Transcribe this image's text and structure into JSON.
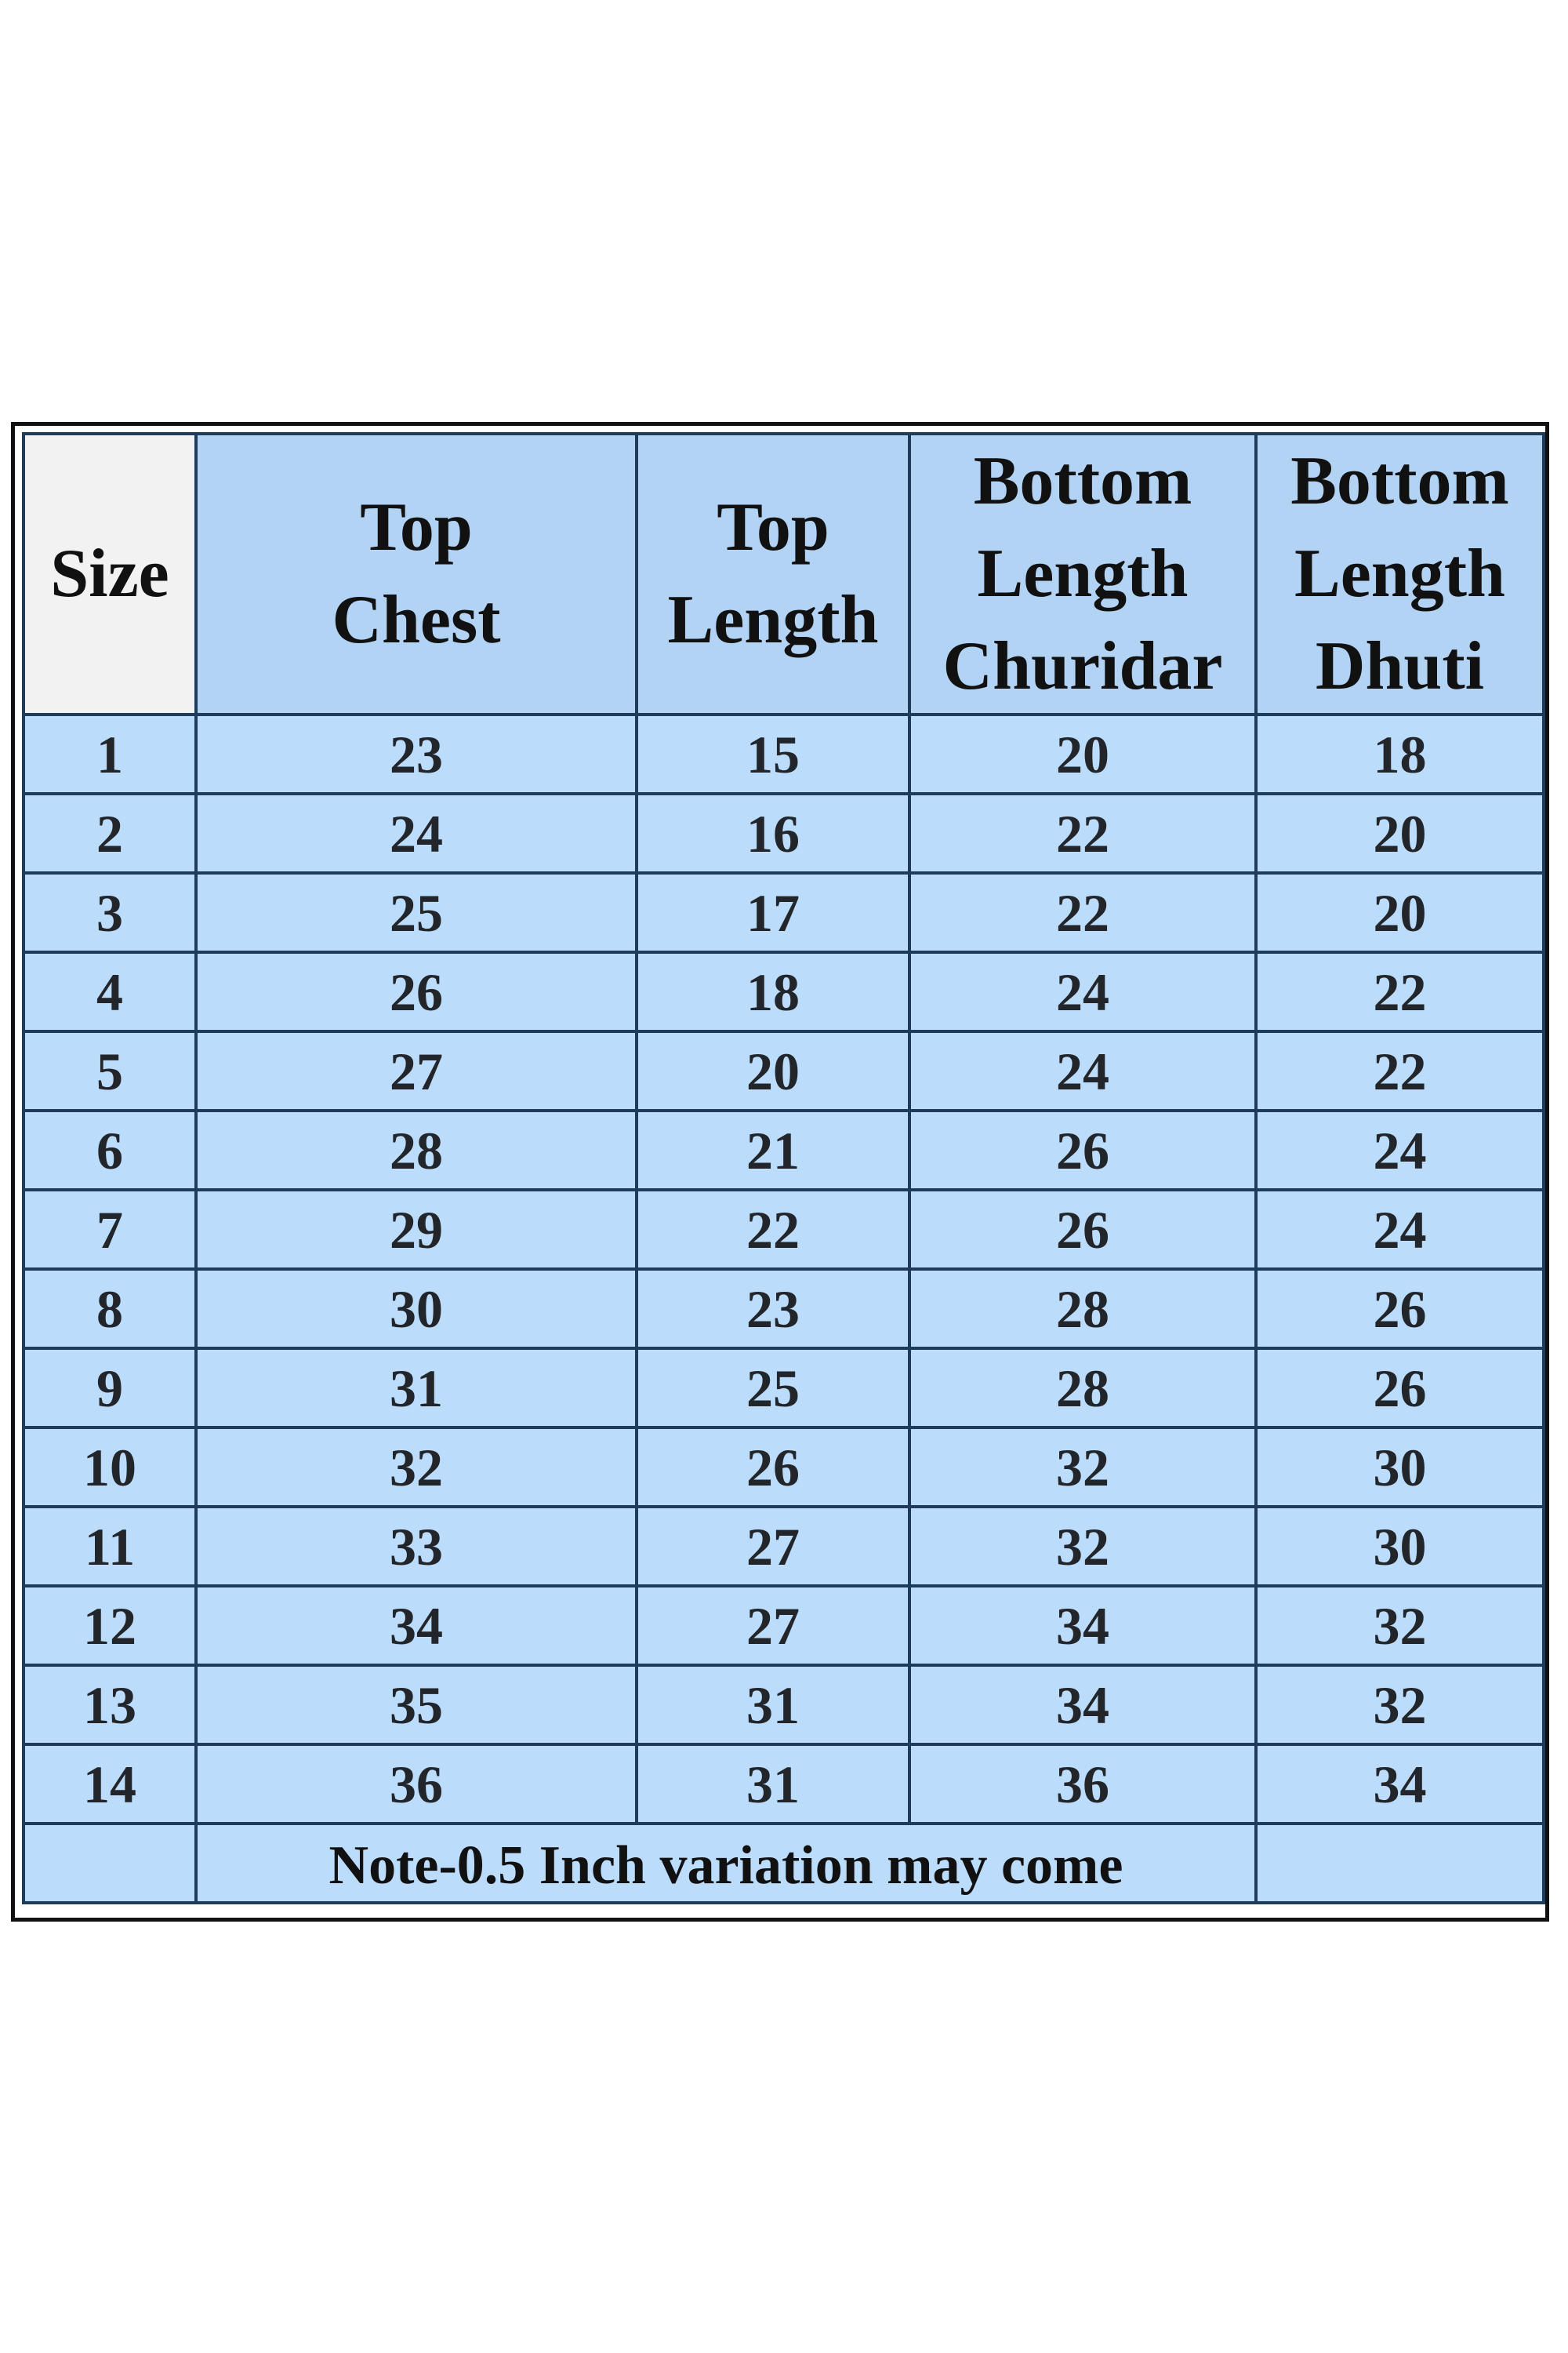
{
  "headers": [
    "Size",
    "Top Chest",
    "Top Length",
    "Bottom Length Churidar",
    "Bottom Length Dhuti"
  ],
  "header_lines": [
    [
      "Size"
    ],
    [
      "Top",
      "Chest"
    ],
    [
      "Top",
      "Length"
    ],
    [
      "Bottom",
      "Length",
      "Churidar"
    ],
    [
      "Bottom",
      "Length",
      "Dhuti"
    ]
  ],
  "rows": [
    [
      "1",
      "23",
      "15",
      "20",
      "18"
    ],
    [
      "2",
      "24",
      "16",
      "22",
      "20"
    ],
    [
      "3",
      "25",
      "17",
      "22",
      "20"
    ],
    [
      "4",
      "26",
      "18",
      "24",
      "22"
    ],
    [
      "5",
      "27",
      "20",
      "24",
      "22"
    ],
    [
      "6",
      "28",
      "21",
      "26",
      "24"
    ],
    [
      "7",
      "29",
      "22",
      "26",
      "24"
    ],
    [
      "8",
      "30",
      "23",
      "28",
      "26"
    ],
    [
      "9",
      "31",
      "25",
      "28",
      "26"
    ],
    [
      "10",
      "32",
      "26",
      "32",
      "30"
    ],
    [
      "11",
      "33",
      "27",
      "32",
      "30"
    ],
    [
      "12",
      "34",
      "27",
      "34",
      "32"
    ],
    [
      "13",
      "35",
      "31",
      "34",
      "32"
    ],
    [
      "14",
      "36",
      "31",
      "36",
      "34"
    ]
  ],
  "note": "Note-0.5 Inch variation may come",
  "colors": {
    "header_fill": "#b3d3f5",
    "size_header_fill": "#f2f2f2",
    "cell_fill": "#bcdcfb",
    "border": "#1f3b5c"
  }
}
